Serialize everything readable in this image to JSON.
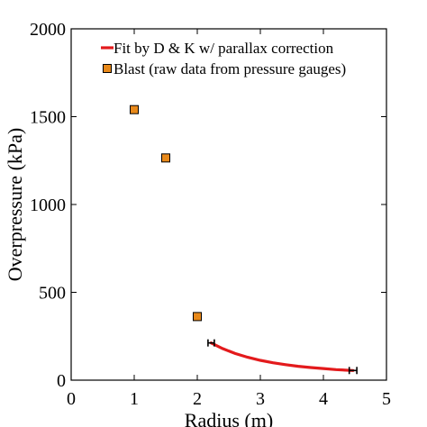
{
  "chart_data": {
    "type": "scatter",
    "xlabel": "Radius (m)",
    "ylabel": "Overpressure (kPa)",
    "xlim": [
      0,
      5
    ],
    "ylim": [
      0,
      2000
    ],
    "xticks": [
      "0",
      "1",
      "2",
      "3",
      "4",
      "5"
    ],
    "yticks": [
      "0",
      "500",
      "1000",
      "1500",
      "2000"
    ],
    "grid": false,
    "legend_position": "top-right",
    "series": [
      {
        "name": "Fit by D & K w/ parallax correction",
        "kind": "line",
        "color": "#e31a1c",
        "x": [
          2.22,
          2.4,
          2.6,
          2.8,
          3.0,
          3.2,
          3.4,
          3.6,
          3.8,
          4.0,
          4.2,
          4.47
        ],
        "y": [
          212,
          180,
          152,
          130,
          113,
          99,
          88,
          79,
          72,
          66,
          60,
          55
        ],
        "error_bars": [
          {
            "x": 2.22,
            "y": 212,
            "xerr": 0.05
          },
          {
            "x": 4.47,
            "y": 55,
            "xerr": 0.06
          }
        ],
        "error_color": "#000000"
      },
      {
        "name": "Blast (raw data from pressure gauges)",
        "kind": "scatter",
        "marker": "square",
        "color": "#e8891a",
        "x": [
          1.0,
          1.5,
          2.0
        ],
        "y": [
          1540,
          1265,
          362
        ]
      }
    ]
  }
}
